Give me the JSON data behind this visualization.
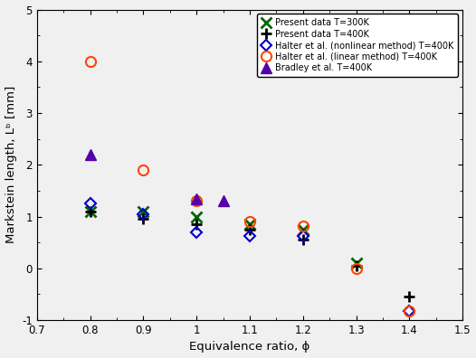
{
  "present_300K": {
    "x": [
      0.8,
      0.9,
      1.0,
      1.1,
      1.2,
      1.3
    ],
    "y": [
      1.1,
      1.1,
      1.0,
      0.85,
      0.75,
      0.1
    ],
    "color": "#006400",
    "marker": "x",
    "label": "Present data T=300K",
    "markersize": 8,
    "markeredgewidth": 2.0
  },
  "present_400K": {
    "x": [
      0.8,
      0.9,
      1.0,
      1.1,
      1.2,
      1.3,
      1.4
    ],
    "y": [
      1.1,
      0.95,
      0.85,
      0.75,
      0.55,
      0.05,
      -0.55
    ],
    "color": "#000000",
    "marker": "+",
    "label": "Present data T=400K",
    "markersize": 9,
    "markeredgewidth": 2.0
  },
  "halter_nonlinear": {
    "x": [
      0.8,
      0.9,
      1.0,
      1.1,
      1.2,
      1.4
    ],
    "y": [
      1.25,
      1.05,
      0.7,
      0.63,
      0.62,
      -0.82
    ],
    "color": "#0000CD",
    "marker": "D",
    "label": "Halter et al. (nonlinear method) T=400K",
    "markersize": 6,
    "markeredgewidth": 1.5,
    "fillstyle": "none"
  },
  "halter_linear": {
    "x": [
      0.8,
      0.9,
      1.0,
      1.1,
      1.2,
      1.3,
      1.4
    ],
    "y": [
      4.0,
      1.9,
      1.3,
      0.9,
      0.82,
      0.0,
      -0.82
    ],
    "color": "#FF4500",
    "marker": "o",
    "label": "Halter et al. (linear method) T=400K",
    "markersize": 8,
    "markeredgewidth": 1.5,
    "fillstyle": "none"
  },
  "bradley": {
    "x": [
      0.8,
      1.0,
      1.05
    ],
    "y": [
      2.2,
      1.35,
      1.3
    ],
    "color": "#5500AA",
    "marker": "^",
    "label": "Bradley et al. T=400K",
    "markersize": 8,
    "markeredgewidth": 1
  },
  "xlim": [
    0.7,
    1.5
  ],
  "ylim": [
    -1,
    5
  ],
  "xticks": [
    0.7,
    0.8,
    0.9,
    1.0,
    1.1,
    1.2,
    1.3,
    1.4,
    1.5
  ],
  "yticks": [
    -1,
    0,
    1,
    2,
    3,
    4,
    5
  ],
  "xtick_labels": [
    "0.7",
    "0.8",
    "0.9",
    "1",
    "1.1",
    "1.2",
    "1.3",
    "1.4",
    "1.5"
  ],
  "ytick_labels": [
    "-1",
    "0",
    "1",
    "2",
    "3",
    "4",
    "5"
  ],
  "xlabel": "Equivalence ratio, ϕ",
  "ylabel": "Markstein length, Lᵇ [mm]",
  "bg_color": "#f0f0f0",
  "legend_fontsize": 7.0,
  "axis_fontsize": 9.5
}
